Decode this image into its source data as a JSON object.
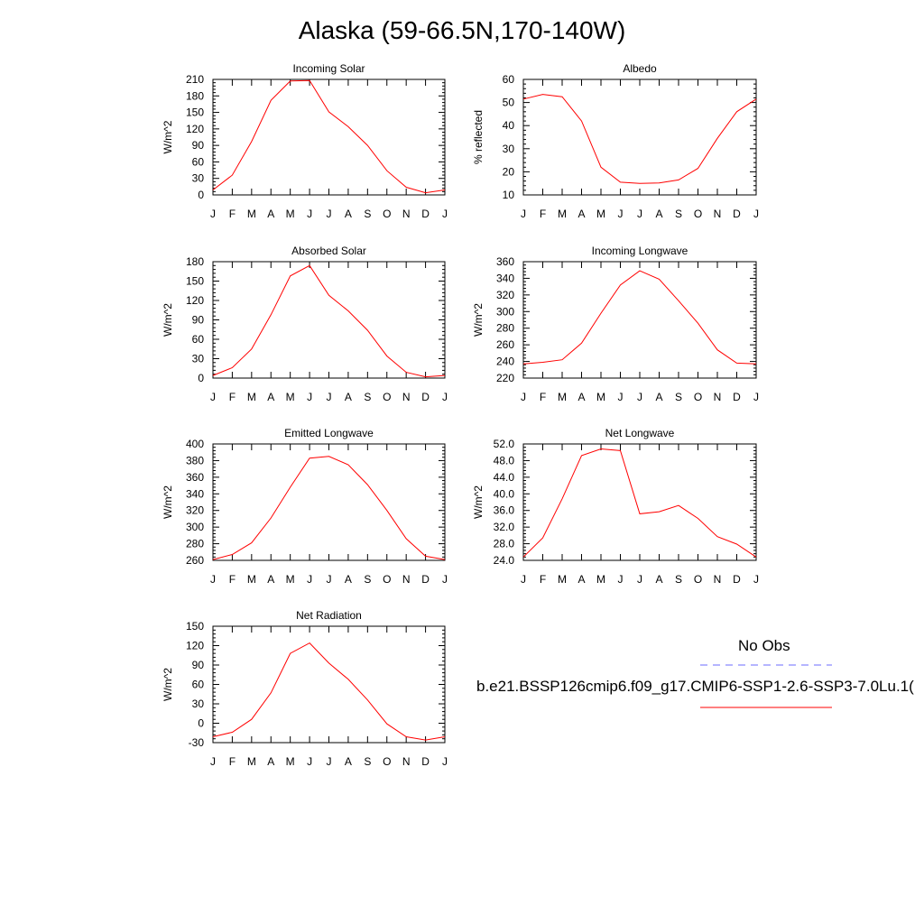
{
  "title": "Alaska (59-66.5N,170-140W)",
  "legend": {
    "obs_label": "No Obs",
    "model_label": "b.e21.BSSP126cmip6.f09_g17.CMIP6-SSP1-2.6-SSP3-7.0Lu.1(",
    "obs_color": "#6b6bff",
    "model_color": "#ff0000"
  },
  "month_labels": [
    "J",
    "F",
    "M",
    "A",
    "M",
    "J",
    "J",
    "A",
    "S",
    "O",
    "N",
    "D",
    "J"
  ],
  "chart_data": [
    {
      "type": "line",
      "title": "Incoming Solar",
      "ylabel": "W/m^2",
      "ylim": [
        0,
        210
      ],
      "yticks": [
        "0",
        "30",
        "60",
        "90",
        "120",
        "150",
        "180",
        "210"
      ],
      "x": [
        "J",
        "F",
        "M",
        "A",
        "M",
        "J",
        "J",
        "A",
        "S",
        "O",
        "N",
        "D",
        "J"
      ],
      "series": [
        {
          "color": "#ff0000",
          "values": [
            9,
            36,
            97,
            172,
            207,
            208,
            151,
            124,
            90,
            44,
            14,
            4,
            9
          ]
        }
      ]
    },
    {
      "type": "line",
      "title": "Albedo",
      "ylabel": "% reflected",
      "ylim": [
        10,
        60
      ],
      "yticks": [
        "10",
        "20",
        "30",
        "40",
        "50",
        "60"
      ],
      "x": [
        "J",
        "F",
        "M",
        "A",
        "M",
        "J",
        "J",
        "A",
        "S",
        "O",
        "N",
        "D",
        "J"
      ],
      "series": [
        {
          "color": "#ff0000",
          "values": [
            51.5,
            53.5,
            52.5,
            42,
            22,
            15.5,
            15,
            15.2,
            16.5,
            21.5,
            34.5,
            46,
            51.5
          ]
        }
      ]
    },
    {
      "type": "line",
      "title": "Absorbed Solar",
      "ylabel": "W/m^2",
      "ylim": [
        0,
        180
      ],
      "yticks": [
        "0",
        "30",
        "60",
        "90",
        "120",
        "150",
        "180"
      ],
      "x": [
        "J",
        "F",
        "M",
        "A",
        "M",
        "J",
        "J",
        "A",
        "S",
        "O",
        "N",
        "D",
        "J"
      ],
      "series": [
        {
          "color": "#ff0000",
          "values": [
            4,
            16,
            45,
            98,
            158,
            174,
            128,
            104,
            74,
            34,
            9,
            2,
            4
          ]
        }
      ]
    },
    {
      "type": "line",
      "title": "Incoming Longwave",
      "ylabel": "W/m^2",
      "ylim": [
        220,
        360
      ],
      "yticks": [
        "220",
        "240",
        "260",
        "280",
        "300",
        "320",
        "340",
        "360"
      ],
      "x": [
        "J",
        "F",
        "M",
        "A",
        "M",
        "J",
        "J",
        "A",
        "S",
        "O",
        "N",
        "D",
        "J"
      ],
      "series": [
        {
          "color": "#ff0000",
          "values": [
            237,
            239,
            242,
            262,
            298,
            332,
            349,
            339,
            313,
            286,
            254,
            238,
            237
          ]
        }
      ]
    },
    {
      "type": "line",
      "title": "Emitted Longwave",
      "ylabel": "W/m^2",
      "ylim": [
        260,
        400
      ],
      "yticks": [
        "260",
        "280",
        "300",
        "320",
        "340",
        "360",
        "380",
        "400"
      ],
      "x": [
        "J",
        "F",
        "M",
        "A",
        "M",
        "J",
        "J",
        "A",
        "S",
        "O",
        "N",
        "D",
        "J"
      ],
      "series": [
        {
          "color": "#ff0000",
          "values": [
            261,
            267,
            281,
            311,
            348,
            383,
            385,
            375,
            351,
            320,
            286,
            265,
            261
          ]
        }
      ]
    },
    {
      "type": "line",
      "title": "Net Longwave",
      "ylabel": "W/m^2",
      "ylim": [
        24,
        52
      ],
      "yticks": [
        "24.0",
        "28.0",
        "32.0",
        "36.0",
        "40.0",
        "44.0",
        "48.0",
        "52.0"
      ],
      "x": [
        "J",
        "F",
        "M",
        "A",
        "M",
        "J",
        "J",
        "A",
        "S",
        "O",
        "N",
        "D",
        "J"
      ],
      "series": [
        {
          "color": "#ff0000",
          "values": [
            24.8,
            29.4,
            38.8,
            49.2,
            50.8,
            50.4,
            35.2,
            35.7,
            37.2,
            34.1,
            29.7,
            27.9,
            24.8
          ]
        }
      ]
    },
    {
      "type": "line",
      "title": "Net Radiation",
      "ylabel": "W/m^2",
      "ylim": [
        -30,
        150
      ],
      "yticks": [
        "-30",
        "0",
        "30",
        "60",
        "90",
        "120",
        "150"
      ],
      "x": [
        "J",
        "F",
        "M",
        "A",
        "M",
        "J",
        "J",
        "A",
        "S",
        "O",
        "N",
        "D",
        "J"
      ],
      "series": [
        {
          "color": "#ff0000",
          "values": [
            -21,
            -14,
            6,
            47,
            108,
            124,
            93,
            68,
            36,
            -1,
            -21,
            -26,
            -21
          ]
        }
      ]
    }
  ]
}
